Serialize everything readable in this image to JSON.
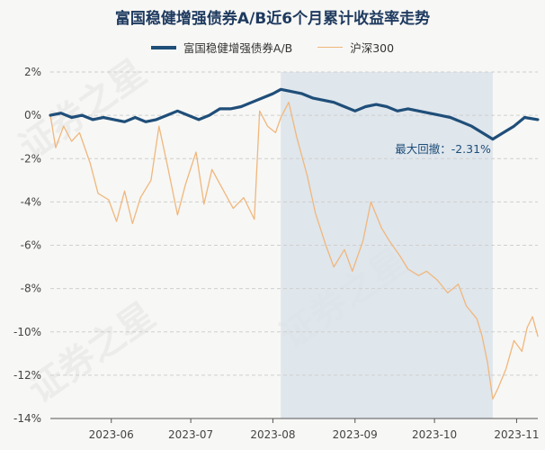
{
  "watermark": "证券之星",
  "chart_data": {
    "type": "line",
    "title": "富国稳健增强债券A/B近6个月累计收益率走势",
    "xlabel": "",
    "ylabel": "",
    "ylim": [
      -14,
      2
    ],
    "yticks": [
      "2%",
      "0%",
      "-2%",
      "-4%",
      "-6%",
      "-8%",
      "-10%",
      "-12%",
      "-14%"
    ],
    "x_range": [
      "2023-05-09",
      "2023-11-09"
    ],
    "xticks": [
      {
        "date": "2023-06-01",
        "label": "2023-06"
      },
      {
        "date": "2023-07-01",
        "label": "2023-07"
      },
      {
        "date": "2023-08-01",
        "label": "2023-08"
      },
      {
        "date": "2023-09-01",
        "label": "2023-09"
      },
      {
        "date": "2023-10-01",
        "label": "2023-10"
      },
      {
        "date": "2023-11-01",
        "label": "2023-11"
      }
    ],
    "legend_position": "top-center",
    "grid": "horizontal dashed",
    "max_drawdown_region": {
      "start": "2023-08-04",
      "end": "2023-10-23"
    },
    "annotation": "最大回撤：-2.31%",
    "series": [
      {
        "name": "富国稳健增强债券A/B",
        "color": "#1f4e79",
        "points": [
          [
            "2023-05-09",
            0.0
          ],
          [
            "2023-05-13",
            0.1
          ],
          [
            "2023-05-17",
            -0.1
          ],
          [
            "2023-05-21",
            0.0
          ],
          [
            "2023-05-25",
            -0.2
          ],
          [
            "2023-05-29",
            -0.1
          ],
          [
            "2023-06-02",
            -0.2
          ],
          [
            "2023-06-06",
            -0.3
          ],
          [
            "2023-06-10",
            -0.1
          ],
          [
            "2023-06-14",
            -0.3
          ],
          [
            "2023-06-18",
            -0.2
          ],
          [
            "2023-06-22",
            0.0
          ],
          [
            "2023-06-26",
            0.2
          ],
          [
            "2023-06-30",
            0.0
          ],
          [
            "2023-07-04",
            -0.2
          ],
          [
            "2023-07-08",
            0.0
          ],
          [
            "2023-07-12",
            0.3
          ],
          [
            "2023-07-16",
            0.3
          ],
          [
            "2023-07-20",
            0.4
          ],
          [
            "2023-07-24",
            0.6
          ],
          [
            "2023-07-28",
            0.8
          ],
          [
            "2023-08-01",
            1.0
          ],
          [
            "2023-08-04",
            1.2
          ],
          [
            "2023-08-08",
            1.1
          ],
          [
            "2023-08-12",
            1.0
          ],
          [
            "2023-08-16",
            0.8
          ],
          [
            "2023-08-20",
            0.7
          ],
          [
            "2023-08-24",
            0.6
          ],
          [
            "2023-08-28",
            0.4
          ],
          [
            "2023-09-01",
            0.2
          ],
          [
            "2023-09-05",
            0.4
          ],
          [
            "2023-09-09",
            0.5
          ],
          [
            "2023-09-13",
            0.4
          ],
          [
            "2023-09-17",
            0.2
          ],
          [
            "2023-09-21",
            0.3
          ],
          [
            "2023-09-25",
            0.2
          ],
          [
            "2023-09-29",
            0.1
          ],
          [
            "2023-10-03",
            0.0
          ],
          [
            "2023-10-07",
            -0.1
          ],
          [
            "2023-10-11",
            -0.3
          ],
          [
            "2023-10-15",
            -0.5
          ],
          [
            "2023-10-19",
            -0.8
          ],
          [
            "2023-10-23",
            -1.1
          ],
          [
            "2023-10-27",
            -0.8
          ],
          [
            "2023-10-31",
            -0.5
          ],
          [
            "2023-11-04",
            -0.1
          ],
          [
            "2023-11-09",
            -0.2
          ]
        ]
      },
      {
        "name": "沪深300",
        "color": "#f0b77c",
        "points": [
          [
            "2023-05-09",
            0.0
          ],
          [
            "2023-05-11",
            -1.5
          ],
          [
            "2023-05-14",
            -0.5
          ],
          [
            "2023-05-17",
            -1.2
          ],
          [
            "2023-05-20",
            -0.8
          ],
          [
            "2023-05-24",
            -2.2
          ],
          [
            "2023-05-27",
            -3.6
          ],
          [
            "2023-05-31",
            -3.9
          ],
          [
            "2023-06-03",
            -4.9
          ],
          [
            "2023-06-06",
            -3.5
          ],
          [
            "2023-06-09",
            -5.0
          ],
          [
            "2023-06-12",
            -3.8
          ],
          [
            "2023-06-16",
            -3.0
          ],
          [
            "2023-06-19",
            -0.5
          ],
          [
            "2023-06-22",
            -2.2
          ],
          [
            "2023-06-26",
            -4.6
          ],
          [
            "2023-06-29",
            -3.2
          ],
          [
            "2023-07-03",
            -1.7
          ],
          [
            "2023-07-06",
            -4.1
          ],
          [
            "2023-07-09",
            -2.5
          ],
          [
            "2023-07-13",
            -3.4
          ],
          [
            "2023-07-17",
            -4.3
          ],
          [
            "2023-07-21",
            -3.8
          ],
          [
            "2023-07-25",
            -4.8
          ],
          [
            "2023-07-27",
            0.2
          ],
          [
            "2023-07-30",
            -0.5
          ],
          [
            "2023-08-02",
            -0.8
          ],
          [
            "2023-08-04",
            -0.1
          ],
          [
            "2023-08-07",
            0.6
          ],
          [
            "2023-08-10",
            -1.0
          ],
          [
            "2023-08-14",
            -2.8
          ],
          [
            "2023-08-17",
            -4.5
          ],
          [
            "2023-08-21",
            -6.0
          ],
          [
            "2023-08-24",
            -7.0
          ],
          [
            "2023-08-28",
            -6.2
          ],
          [
            "2023-08-31",
            -7.2
          ],
          [
            "2023-09-04",
            -5.8
          ],
          [
            "2023-09-07",
            -4.0
          ],
          [
            "2023-09-11",
            -5.2
          ],
          [
            "2023-09-14",
            -5.8
          ],
          [
            "2023-09-18",
            -6.5
          ],
          [
            "2023-09-21",
            -7.1
          ],
          [
            "2023-09-25",
            -7.4
          ],
          [
            "2023-09-28",
            -7.2
          ],
          [
            "2023-10-02",
            -7.6
          ],
          [
            "2023-10-06",
            -8.2
          ],
          [
            "2023-10-10",
            -7.8
          ],
          [
            "2023-10-13",
            -8.8
          ],
          [
            "2023-10-17",
            -9.4
          ],
          [
            "2023-10-19",
            -10.2
          ],
          [
            "2023-10-21",
            -11.4
          ],
          [
            "2023-10-23",
            -13.1
          ],
          [
            "2023-10-25",
            -12.6
          ],
          [
            "2023-10-28",
            -11.7
          ],
          [
            "2023-10-31",
            -10.4
          ],
          [
            "2023-11-03",
            -10.9
          ],
          [
            "2023-11-05",
            -9.8
          ],
          [
            "2023-11-07",
            -9.3
          ],
          [
            "2023-11-09",
            -10.2
          ]
        ]
      }
    ]
  }
}
